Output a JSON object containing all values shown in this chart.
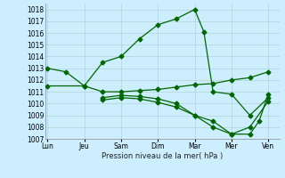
{
  "background_color": "#cceeff",
  "grid_color": "#aacccc",
  "line_color": "#006600",
  "xlabel": "Pression niveau de la mer( hPa )",
  "ylim": [
    1007,
    1018.5
  ],
  "yticks": [
    1007,
    1008,
    1009,
    1010,
    1011,
    1012,
    1013,
    1014,
    1015,
    1016,
    1017,
    1018
  ],
  "xtick_labels": [
    "Lun",
    "Jeu",
    "Sam",
    "Dim",
    "Mar",
    "Mer",
    "Ven"
  ],
  "xtick_positions": [
    0,
    1,
    2,
    3,
    4,
    5,
    6
  ],
  "xlim": [
    -0.05,
    6.3
  ],
  "series1_x": [
    0,
    0.5,
    1.0,
    1.5,
    2.0,
    2.5,
    3.0,
    3.5,
    4.0,
    4.25,
    4.5,
    5.0,
    5.5,
    6.0
  ],
  "series1_y": [
    1013.0,
    1012.7,
    1011.5,
    1013.5,
    1014.0,
    1015.5,
    1016.7,
    1017.2,
    1018.0,
    1016.1,
    1011.0,
    1010.8,
    1009.0,
    1010.5
  ],
  "series2_x": [
    0,
    1.0,
    1.5,
    2.0,
    2.5,
    3.0,
    3.5,
    4.0,
    4.5,
    5.0,
    5.5,
    6.0
  ],
  "series2_y": [
    1011.5,
    1011.5,
    1011.0,
    1011.0,
    1011.1,
    1011.2,
    1011.4,
    1011.6,
    1011.7,
    1012.0,
    1012.2,
    1012.7
  ],
  "series3_x": [
    1.5,
    2.0,
    2.5,
    3.0,
    3.5,
    4.0,
    4.5,
    5.0,
    5.5,
    5.75,
    6.0
  ],
  "series3_y": [
    1010.5,
    1010.7,
    1010.6,
    1010.4,
    1010.0,
    1009.0,
    1008.5,
    1007.4,
    1007.4,
    1008.5,
    1010.8
  ],
  "series4_x": [
    1.5,
    2.0,
    2.5,
    3.0,
    3.5,
    4.0,
    4.5,
    5.0,
    5.5,
    6.0
  ],
  "series4_y": [
    1010.3,
    1010.5,
    1010.4,
    1010.1,
    1009.7,
    1009.0,
    1008.0,
    1007.4,
    1008.0,
    1010.2
  ]
}
